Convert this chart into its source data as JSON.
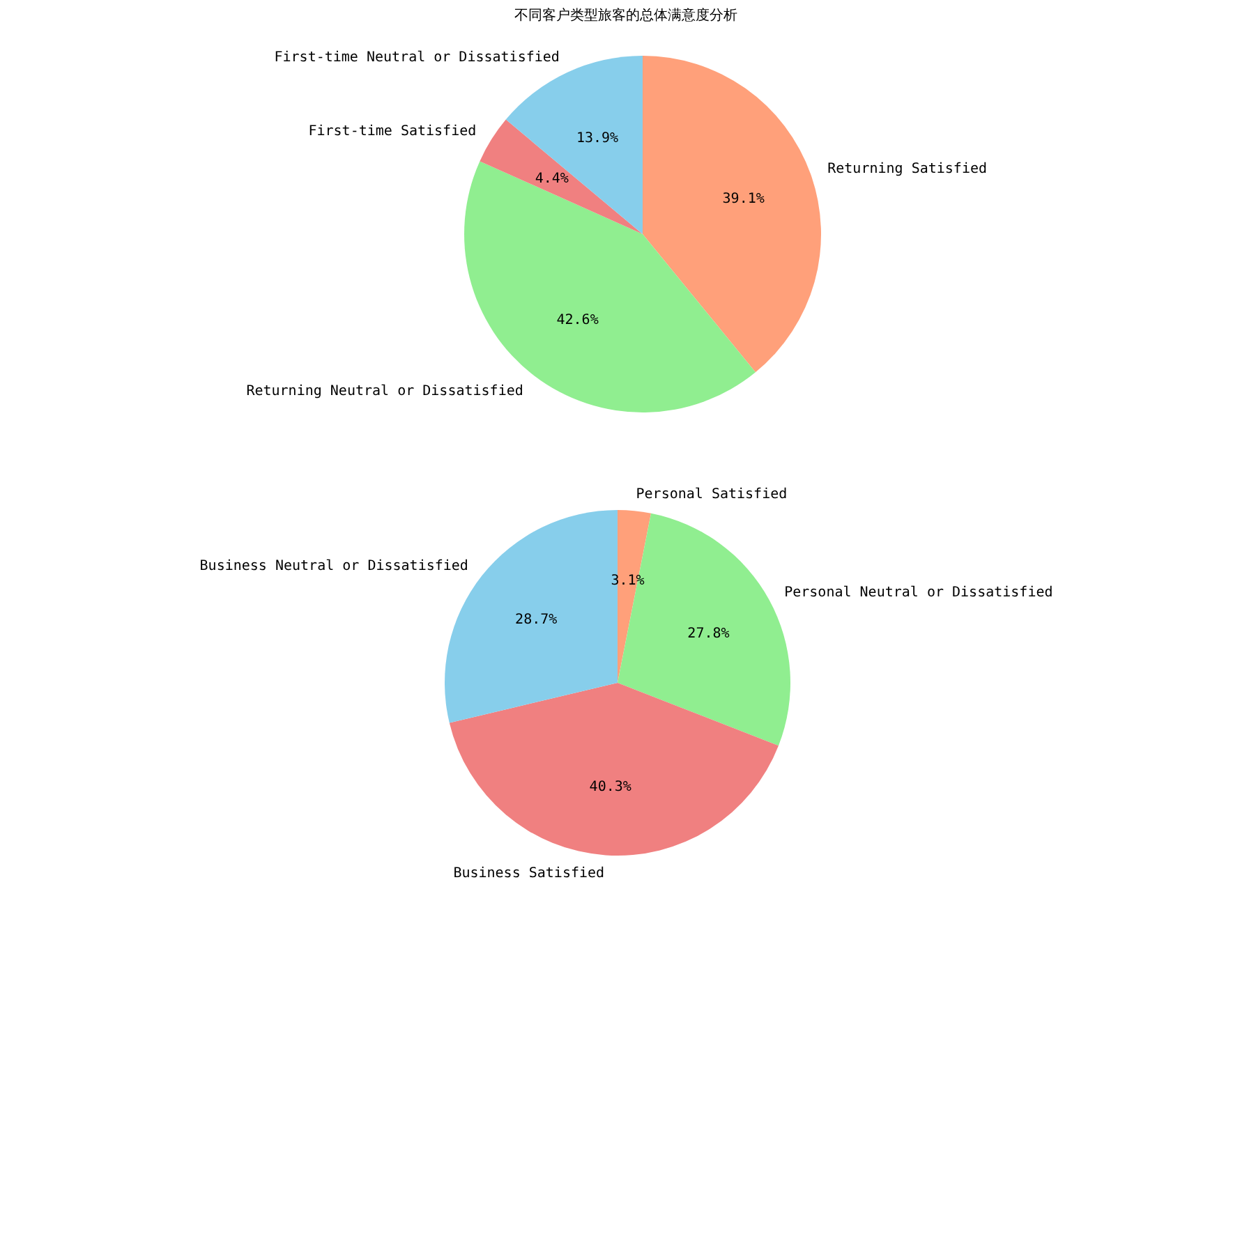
{
  "chart_data": [
    {
      "type": "pie",
      "title": "不同客户类型旅客的总体满意度分析",
      "categories": [
        "Returning Satisfied",
        "Returning Neutral or Dissatisfied",
        "First-time Satisfied",
        "First-time Neutral or Dissatisfied"
      ],
      "values": [
        39.1,
        42.6,
        4.4,
        13.9
      ],
      "colors": [
        "#ffa07a",
        "#90ee90",
        "#f08080",
        "#87ceeb"
      ],
      "value_labels": [
        "39.1%",
        "42.6%",
        "4.4%",
        "13.9%"
      ]
    },
    {
      "type": "pie",
      "categories": [
        "Personal Satisfied",
        "Personal Neutral or Dissatisfied",
        "Business Satisfied",
        "Business Neutral or Dissatisfied"
      ],
      "values": [
        3.1,
        27.8,
        40.3,
        28.7
      ],
      "colors": [
        "#ffa07a",
        "#90ee90",
        "#f08080",
        "#87ceeb"
      ],
      "value_labels": [
        "3.1%",
        "27.8%",
        "40.3%",
        "28.7%"
      ]
    }
  ]
}
